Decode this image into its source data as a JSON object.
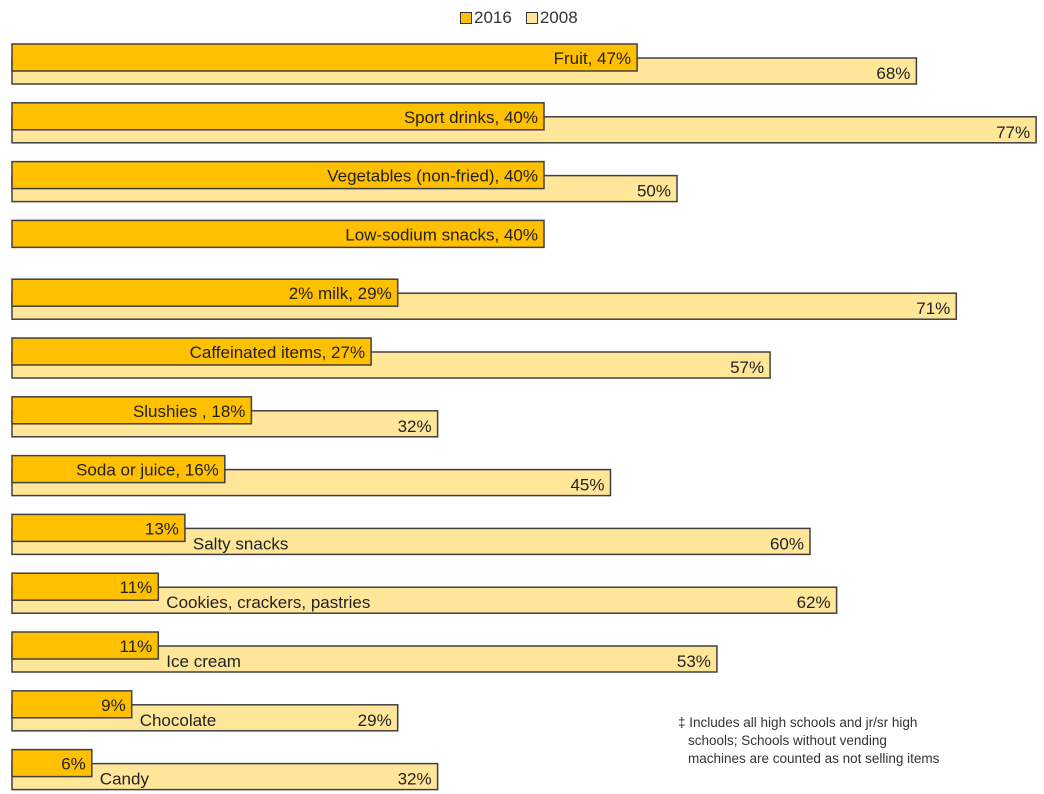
{
  "colors": {
    "series_2016": "#FFC000",
    "series_2008": "#FFE699",
    "border": "#404040"
  },
  "footnote": {
    "line1": "‡ Includes all high schools and jr/sr high",
    "line2": "schools; Schools without vending",
    "line3": "machines are counted as not selling items"
  },
  "chart_data": {
    "type": "bar",
    "orientation": "horizontal",
    "xlim": [
      0,
      80
    ],
    "grid": false,
    "legend_position": "top-center",
    "series": [
      {
        "name": "2016",
        "color": "#FFC000"
      },
      {
        "name": "2008",
        "color": "#FFE699"
      }
    ],
    "categories": [
      {
        "label": "Fruit",
        "v2016": 47,
        "v2008": 68,
        "label2016": "Fruit, 47%",
        "label2008": "68%",
        "cat_in_back": false
      },
      {
        "label": "Sport drinks",
        "v2016": 40,
        "v2008": 77,
        "label2016": "Sport drinks, 40%",
        "label2008": "77%",
        "cat_in_back": false
      },
      {
        "label": "Vegetables (non-fried)",
        "v2016": 40,
        "v2008": 50,
        "label2016": "Vegetables (non-fried), 40%",
        "label2008": "50%",
        "cat_in_back": false
      },
      {
        "label": "Low-sodium snacks",
        "v2016": 40,
        "v2008": null,
        "label2016": "Low-sodium snacks, 40%",
        "label2008": "",
        "cat_in_back": false
      },
      {
        "label": "2% milk",
        "v2016": 29,
        "v2008": 71,
        "label2016": "2% milk, 29%",
        "label2008": "71%",
        "cat_in_back": false
      },
      {
        "label": "Caffeinated items",
        "v2016": 27,
        "v2008": 57,
        "label2016": "Caffeinated items, 27%",
        "label2008": "57%",
        "cat_in_back": false
      },
      {
        "label": "Slushies ",
        "v2016": 18,
        "v2008": 32,
        "label2016": "Slushies , 18%",
        "label2008": "32%",
        "cat_in_back": false
      },
      {
        "label": "Soda or juice",
        "v2016": 16,
        "v2008": 45,
        "label2016": "Soda or juice, 16%",
        "label2008": "45%",
        "cat_in_back": false
      },
      {
        "label": "Salty snacks",
        "v2016": 13,
        "v2008": 60,
        "label2016": "13%",
        "label2008": "60%",
        "cat_in_back": true
      },
      {
        "label": "Cookies, crackers, pastries",
        "v2016": 11,
        "v2008": 62,
        "label2016": "11%",
        "label2008": "62%",
        "cat_in_back": true
      },
      {
        "label": "Ice cream",
        "v2016": 11,
        "v2008": 53,
        "label2016": "11%",
        "label2008": "53%",
        "cat_in_back": true
      },
      {
        "label": "Chocolate",
        "v2016": 9,
        "v2008": 29,
        "label2016": "9%",
        "label2008": "29%",
        "cat_in_back": true
      },
      {
        "label": "Candy",
        "v2016": 6,
        "v2008": 32,
        "label2016": "6%",
        "label2008": "32%",
        "cat_in_back": true
      }
    ]
  }
}
